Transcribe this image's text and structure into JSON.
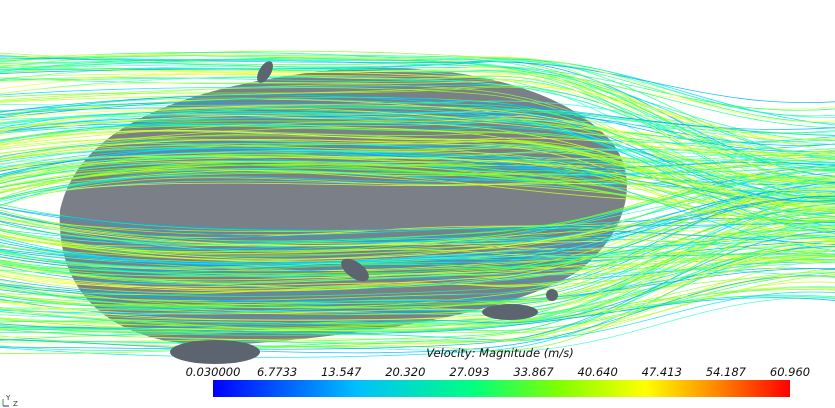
{
  "colorbar": {
    "title": "Velocity: Magnitude (m/s)",
    "ticks": [
      "0.030000",
      "6.7733",
      "13.547",
      "20.320",
      "27.093",
      "33.867",
      "40.640",
      "47.413",
      "54.187",
      "60.960"
    ]
  },
  "axes": {
    "y": "Y",
    "z": "Z"
  }
}
